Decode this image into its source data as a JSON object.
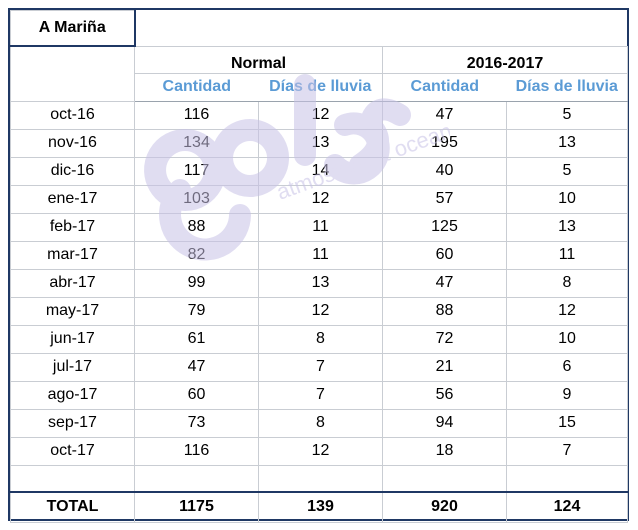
{
  "title": "A Mariña",
  "groups": [
    "Normal",
    "2016-2017"
  ],
  "subheaders": [
    "Cantidad",
    "Días de lluvia",
    "Cantidad",
    "Días de lluvia"
  ],
  "rows": [
    {
      "month": "oct-16",
      "values": [
        "116",
        "12",
        "47",
        "5"
      ]
    },
    {
      "month": "nov-16",
      "values": [
        "134",
        "13",
        "195",
        "13"
      ]
    },
    {
      "month": "dic-16",
      "values": [
        "117",
        "14",
        "40",
        "5"
      ]
    },
    {
      "month": "ene-17",
      "values": [
        "103",
        "12",
        "57",
        "10"
      ]
    },
    {
      "month": "feb-17",
      "values": [
        "88",
        "11",
        "125",
        "13"
      ]
    },
    {
      "month": "mar-17",
      "values": [
        "82",
        "11",
        "60",
        "11"
      ]
    },
    {
      "month": "abr-17",
      "values": [
        "99",
        "13",
        "47",
        "8"
      ]
    },
    {
      "month": "may-17",
      "values": [
        "79",
        "12",
        "88",
        "12"
      ]
    },
    {
      "month": "jun-17",
      "values": [
        "61",
        "8",
        "72",
        "10"
      ]
    },
    {
      "month": "jul-17",
      "values": [
        "47",
        "7",
        "21",
        "6"
      ]
    },
    {
      "month": "ago-17",
      "values": [
        "60",
        "7",
        "56",
        "9"
      ]
    },
    {
      "month": "sep-17",
      "values": [
        "73",
        "8",
        "94",
        "15"
      ]
    },
    {
      "month": "oct-17",
      "values": [
        "116",
        "12",
        "18",
        "7"
      ]
    }
  ],
  "total": {
    "label": "TOTAL",
    "values": [
      "1175",
      "139",
      "920",
      "124"
    ]
  },
  "watermark": {
    "logo_text": "goles",
    "tagline": "atmosfera & oceano",
    "color": "#c8c2e6"
  },
  "colors": {
    "title": "#1f3864",
    "subheader": "#5b9bd5",
    "border": "#1f3864"
  }
}
